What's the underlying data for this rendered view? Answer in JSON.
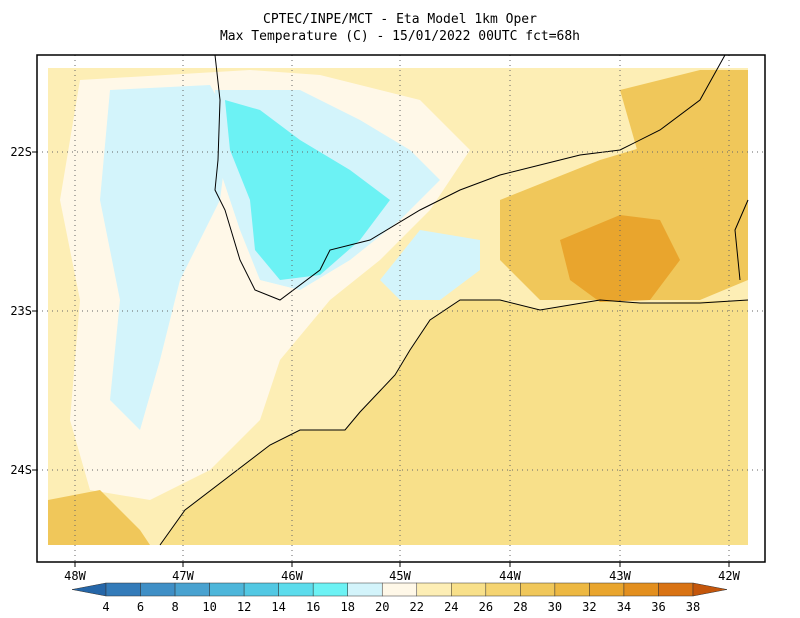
{
  "title": [
    "CPTEC/INPE/MCT -  Eta Model 1km Oper",
    "Max Temperature (C) - 15/01/2022 00UTC fct=68h"
  ],
  "x_labels": [
    "48W",
    "47W",
    "46W",
    "45W",
    "44W",
    "43W",
    "42W"
  ],
  "y_labels": [
    "22S",
    "23S",
    "24S"
  ],
  "colorbar": {
    "ticks": [
      4,
      6,
      8,
      10,
      12,
      14,
      16,
      18,
      20,
      22,
      24,
      26,
      28,
      30,
      32,
      34,
      36,
      38
    ],
    "colors": [
      "#2566a8",
      "#337bb9",
      "#3f8fc6",
      "#49a2d0",
      "#4db6da",
      "#52c8e3",
      "#5cdcec",
      "#6cf2f4",
      "#d3f4fb",
      "#fff8e8",
      "#fdeeb5",
      "#f8e08a",
      "#f5d471",
      "#f0c75a",
      "#edb842",
      "#e9a52d",
      "#e38f1e",
      "#d97314",
      "#c4560b"
    ]
  }
}
